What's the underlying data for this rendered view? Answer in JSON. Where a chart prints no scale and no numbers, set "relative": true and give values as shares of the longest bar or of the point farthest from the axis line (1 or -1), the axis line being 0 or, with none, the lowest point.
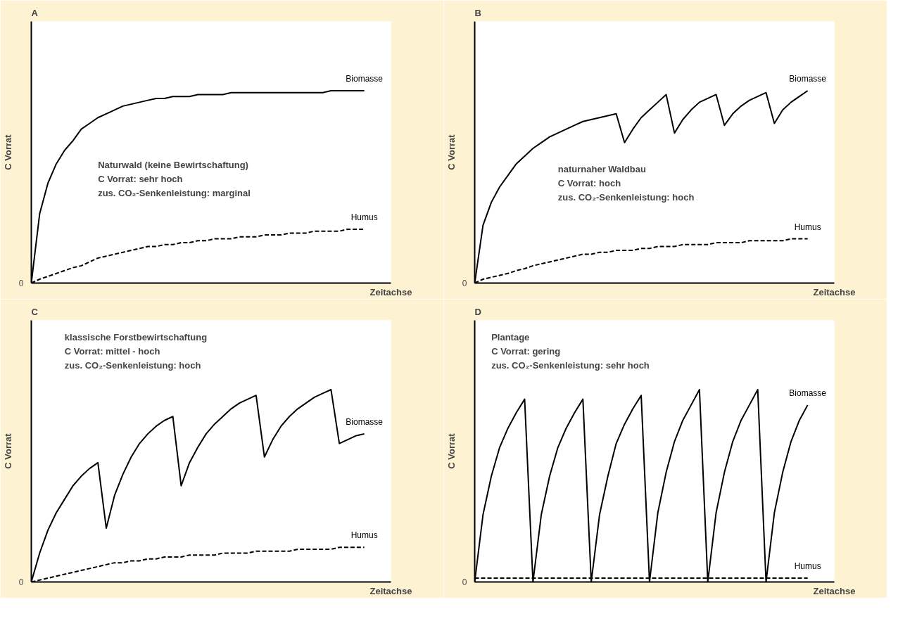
{
  "chart_data": [
    {
      "type": "line",
      "title": "A",
      "xlabel": "Zeitachse",
      "ylabel": "C Vorrat",
      "relative": true,
      "annotations": [
        "0",
        "Naturwald (keine Bewirtschaftung)",
        "C Vorrat: sehr hoch",
        "zus. CO₂-Senkenleistung: marginal"
      ],
      "categories": [
        null,
        null,
        null,
        null,
        null,
        null,
        null,
        null,
        null,
        null,
        null,
        null,
        null,
        null,
        null,
        null,
        null,
        null,
        null,
        null,
        null,
        null,
        null,
        null,
        null,
        null,
        null,
        null,
        null,
        null,
        null,
        null,
        null,
        null,
        null,
        null,
        null,
        null,
        null,
        null,
        null
      ],
      "series": [
        {
          "name": "Biomasse",
          "color": "#000000",
          "line_style": "solid",
          "values": [
            0,
            0.36,
            0.52,
            0.62,
            0.69,
            0.74,
            0.8,
            0.83,
            0.86,
            0.88,
            0.9,
            0.92,
            0.93,
            0.94,
            0.95,
            0.96,
            0.96,
            0.97,
            0.97,
            0.97,
            0.98,
            0.98,
            0.98,
            0.98,
            0.99,
            0.99,
            0.99,
            0.99,
            0.99,
            0.99,
            0.99,
            0.99,
            0.99,
            0.99,
            0.99,
            0.99,
            1.0,
            1.0,
            1.0,
            1.0,
            1.0
          ]
        },
        {
          "name": "Humus",
          "color": "#000000",
          "line_style": "dashed",
          "values": [
            0,
            0.02,
            0.035,
            0.05,
            0.065,
            0.08,
            0.09,
            0.11,
            0.13,
            0.14,
            0.15,
            0.16,
            0.17,
            0.18,
            0.19,
            0.19,
            0.2,
            0.2,
            0.21,
            0.21,
            0.22,
            0.22,
            0.23,
            0.23,
            0.23,
            0.24,
            0.24,
            0.24,
            0.25,
            0.25,
            0.25,
            0.26,
            0.26,
            0.26,
            0.27,
            0.27,
            0.27,
            0.27,
            0.28,
            0.28,
            0.28
          ]
        }
      ]
    },
    {
      "type": "line",
      "title": "B",
      "xlabel": "Zeitachse",
      "ylabel": "C Vorrat",
      "relative": true,
      "annotations": [
        "0",
        "naturnaher Waldbau",
        "C Vorrat: hoch",
        "zus. CO₂-Senkenleistung: hoch"
      ],
      "categories": [
        null,
        null,
        null,
        null,
        null,
        null,
        null,
        null,
        null,
        null,
        null,
        null,
        null,
        null,
        null,
        null,
        null,
        null,
        null,
        null,
        null,
        null,
        null,
        null,
        null,
        null,
        null,
        null,
        null,
        null,
        null,
        null,
        null,
        null,
        null,
        null,
        null,
        null,
        null,
        null,
        null
      ],
      "series": [
        {
          "name": "Biomasse",
          "color": "#000000",
          "line_style": "solid",
          "values": [
            0,
            0.3,
            0.42,
            0.5,
            0.56,
            0.62,
            0.66,
            0.7,
            0.73,
            0.76,
            0.78,
            0.8,
            0.82,
            0.84,
            0.85,
            0.86,
            0.87,
            0.88,
            0.73,
            0.8,
            0.86,
            0.9,
            0.94,
            0.98,
            0.78,
            0.85,
            0.9,
            0.94,
            0.96,
            0.98,
            0.82,
            0.88,
            0.92,
            0.95,
            0.97,
            0.99,
            0.83,
            0.9,
            0.94,
            0.97,
            1.0
          ]
        },
        {
          "name": "Humus",
          "color": "#000000",
          "line_style": "dashed",
          "values": [
            0,
            0.02,
            0.03,
            0.04,
            0.05,
            0.065,
            0.075,
            0.09,
            0.1,
            0.11,
            0.12,
            0.13,
            0.14,
            0.15,
            0.15,
            0.16,
            0.16,
            0.17,
            0.17,
            0.17,
            0.18,
            0.18,
            0.19,
            0.19,
            0.19,
            0.2,
            0.2,
            0.2,
            0.2,
            0.21,
            0.21,
            0.21,
            0.21,
            0.22,
            0.22,
            0.22,
            0.22,
            0.22,
            0.23,
            0.23,
            0.23
          ]
        }
      ]
    },
    {
      "type": "line",
      "title": "C",
      "xlabel": "Zeitachse",
      "ylabel": "C Vorrat",
      "relative": true,
      "annotations": [
        "0",
        "klassische Forstbewirtschaftung",
        "C Vorrat: mittel - hoch",
        "zus. CO₂-Senkenleistung: hoch"
      ],
      "categories": [
        null,
        null,
        null,
        null,
        null,
        null,
        null,
        null,
        null,
        null,
        null,
        null,
        null,
        null,
        null,
        null,
        null,
        null,
        null,
        null,
        null,
        null,
        null,
        null,
        null,
        null,
        null,
        null,
        null,
        null,
        null,
        null,
        null,
        null,
        null,
        null,
        null,
        null,
        null,
        null,
        null
      ],
      "series": [
        {
          "name": "Biomasse",
          "color": "#000000",
          "line_style": "solid",
          "values": [
            0,
            0.15,
            0.27,
            0.36,
            0.43,
            0.5,
            0.55,
            0.59,
            0.62,
            0.28,
            0.45,
            0.56,
            0.65,
            0.72,
            0.77,
            0.81,
            0.84,
            0.86,
            0.5,
            0.62,
            0.7,
            0.77,
            0.82,
            0.86,
            0.9,
            0.93,
            0.95,
            0.97,
            0.65,
            0.74,
            0.81,
            0.86,
            0.9,
            0.93,
            0.96,
            0.98,
            1.0,
            0.72,
            0.74,
            0.76,
            0.77
          ]
        },
        {
          "name": "Humus",
          "color": "#000000",
          "line_style": "dashed",
          "values": [
            0,
            0.01,
            0.02,
            0.03,
            0.04,
            0.05,
            0.06,
            0.07,
            0.08,
            0.09,
            0.1,
            0.1,
            0.11,
            0.11,
            0.12,
            0.12,
            0.13,
            0.13,
            0.13,
            0.14,
            0.14,
            0.14,
            0.14,
            0.15,
            0.15,
            0.15,
            0.15,
            0.16,
            0.16,
            0.16,
            0.16,
            0.16,
            0.17,
            0.17,
            0.17,
            0.17,
            0.17,
            0.18,
            0.18,
            0.18,
            0.18
          ]
        }
      ]
    },
    {
      "type": "line",
      "title": "D",
      "xlabel": "Zeitachse",
      "ylabel": "C Vorrat",
      "relative": true,
      "annotations": [
        "0",
        "Plantage",
        "C Vorrat: gering",
        "zus. CO₂-Senkenleistung: sehr hoch"
      ],
      "categories": [
        null,
        null,
        null,
        null,
        null,
        null,
        null,
        null,
        null,
        null,
        null,
        null,
        null,
        null,
        null,
        null,
        null,
        null,
        null,
        null,
        null,
        null,
        null,
        null,
        null,
        null,
        null,
        null,
        null,
        null,
        null,
        null,
        null,
        null,
        null,
        null,
        null,
        null,
        null,
        null,
        null
      ],
      "series": [
        {
          "name": "Biomasse",
          "color": "#000000",
          "line_style": "solid",
          "values": [
            0,
            0.35,
            0.55,
            0.7,
            0.8,
            0.88,
            0.95,
            0,
            0.35,
            0.55,
            0.7,
            0.8,
            0.88,
            0.95,
            0,
            0.35,
            0.55,
            0.72,
            0.82,
            0.9,
            0.97,
            0,
            0.36,
            0.57,
            0.73,
            0.84,
            0.92,
            1.0,
            0,
            0.36,
            0.57,
            0.73,
            0.84,
            0.92,
            1.0,
            0,
            0.36,
            0.57,
            0.73,
            0.84,
            0.92
          ]
        },
        {
          "name": "Humus",
          "color": "#000000",
          "line_style": "dashed",
          "values": [
            0.02,
            0.02,
            0.02,
            0.02,
            0.02,
            0.02,
            0.02,
            0.02,
            0.02,
            0.02,
            0.02,
            0.02,
            0.02,
            0.02,
            0.02,
            0.02,
            0.02,
            0.02,
            0.02,
            0.02,
            0.02,
            0.02,
            0.02,
            0.02,
            0.02,
            0.02,
            0.02,
            0.02,
            0.02,
            0.02,
            0.02,
            0.02,
            0.02,
            0.02,
            0.02,
            0.02,
            0.02,
            0.02,
            0.02,
            0.02,
            0.02
          ]
        }
      ]
    }
  ]
}
